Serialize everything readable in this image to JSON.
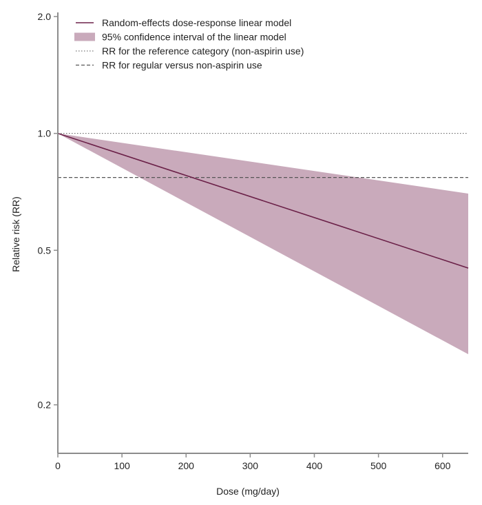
{
  "chart_data": {
    "type": "line",
    "xlabel": "Dose (mg/day)",
    "ylabel": "Relative risk (RR)",
    "xlim": [
      0,
      640
    ],
    "ylim": [
      0.15,
      2.0
    ],
    "yscale": "log",
    "xticks": [
      0,
      100,
      200,
      300,
      400,
      500,
      600
    ],
    "yticks": [
      0.2,
      0.5,
      1.0,
      2.0
    ],
    "ytick_labels": [
      "0.2",
      "0.5",
      "1.0",
      "2.0"
    ],
    "grid": false,
    "legend_position": "top-left",
    "colors": {
      "line": "#6b2148",
      "band": "#c9aabb",
      "ref": "#555555",
      "axis": "#8c8c8c"
    },
    "series": [
      {
        "name": "Random-effects dose-response linear model",
        "kind": "line",
        "x": [
          0,
          640
        ],
        "y": [
          1.0,
          0.45
        ]
      },
      {
        "name": "95% confidence interval of the linear model",
        "kind": "band",
        "x": [
          0,
          640
        ],
        "lower": [
          1.0,
          0.27
        ],
        "upper": [
          1.0,
          0.7
        ]
      },
      {
        "name": "RR for the reference category (non-aspirin use)",
        "kind": "hline-dotted",
        "y": 1.0
      },
      {
        "name": "RR for regular versus non-aspirin use",
        "kind": "hline-dashed",
        "y": 0.77
      }
    ]
  }
}
